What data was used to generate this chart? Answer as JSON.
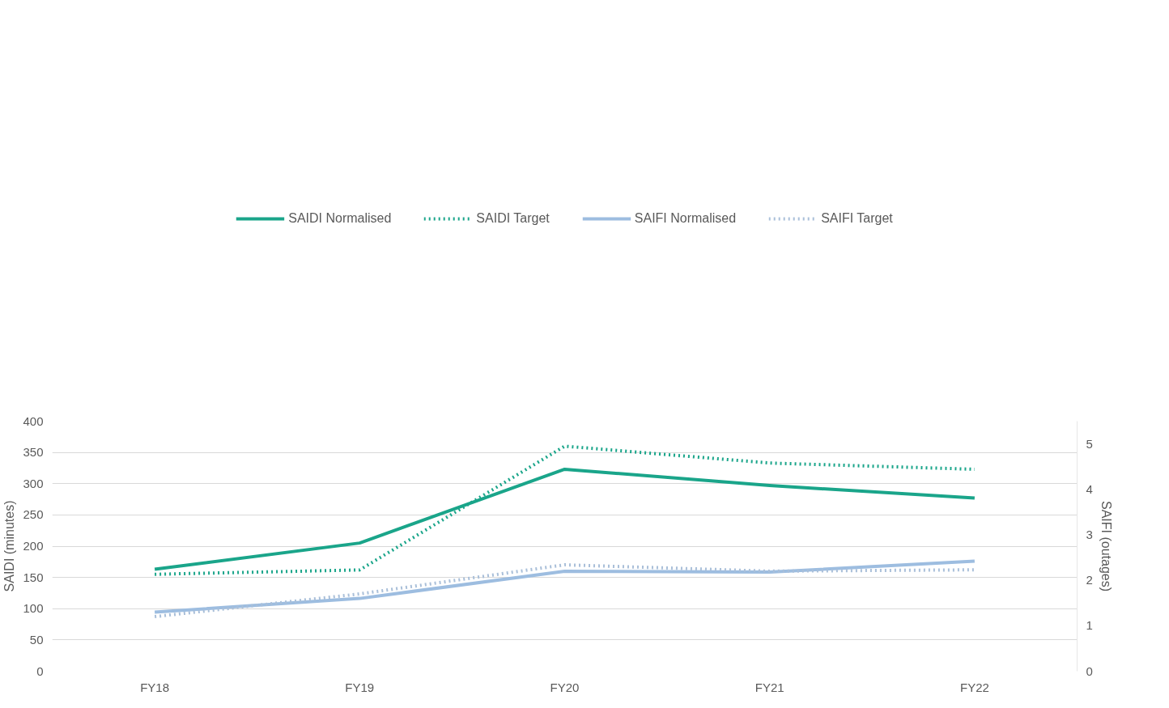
{
  "chart_data": {
    "type": "line",
    "categories": [
      "FY18",
      "FY19",
      "FY20",
      "FY21",
      "FY22"
    ],
    "ylabel": "SAIDI (minutes)",
    "y2label": "SAIFI (outages)",
    "ylim": [
      0,
      400
    ],
    "yticks": [
      0,
      50,
      100,
      150,
      200,
      250,
      300,
      350,
      400
    ],
    "y2lim": [
      0,
      5.5
    ],
    "y2ticks": [
      0,
      1,
      2,
      3,
      4,
      5
    ],
    "grid": "y",
    "legend": "top",
    "marker": "none",
    "series": [
      {
        "name": "SAIDI Normalised",
        "color": "#1aa58a",
        "line_style": "solid",
        "values": [
          163,
          205,
          323,
          297,
          277
        ]
      },
      {
        "name": "SAIDI Target",
        "color": "#1aa58a",
        "line_style": "dotted",
        "values": [
          155,
          162,
          360,
          333,
          323
        ]
      },
      {
        "name": "SAIFI Normalised",
        "color": "#9dbde0",
        "line_style": "solid",
        "axis": "y2",
        "values": [
          1.3,
          1.6,
          2.2,
          2.18,
          2.42
        ]
      },
      {
        "name": "SAIFI Target",
        "color": "#a9bfd9",
        "line_style": "dotted",
        "axis": "y2",
        "values": [
          1.2,
          1.7,
          2.34,
          2.2,
          2.23
        ]
      }
    ]
  }
}
